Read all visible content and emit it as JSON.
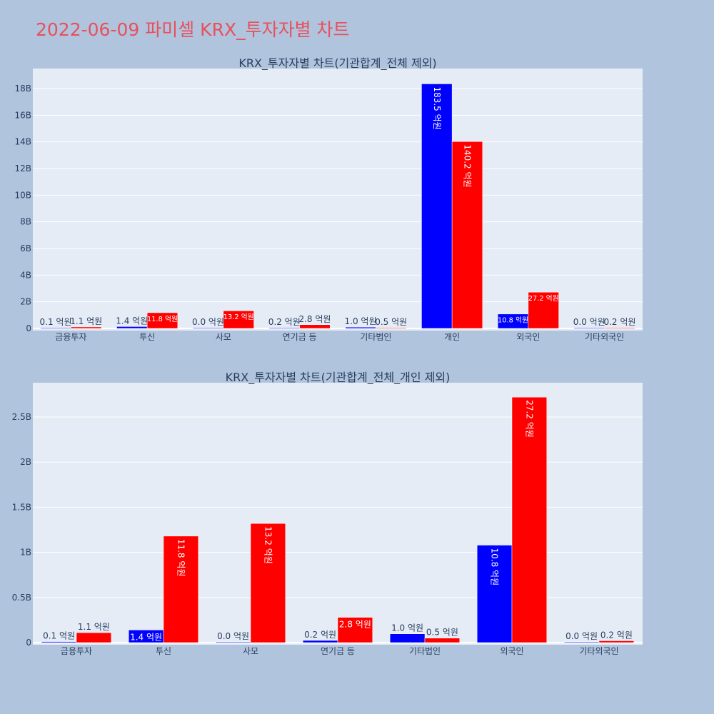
{
  "title": "2022-06-09 파미셀 KRX_투자자별 차트",
  "colors": {
    "buy": "#0000ff",
    "sell": "#ff0000",
    "plot_bg": "#e5ecf6",
    "page_bg": "#b0c4de",
    "title": "#e8505b"
  },
  "chart_data": [
    {
      "type": "bar",
      "title": "KRX_투자자별 차트(기관합계_전체 제외)",
      "categories": [
        "금융투자",
        "투신",
        "사모",
        "연기금 등",
        "기타법인",
        "개인",
        "외국인",
        "기타외국인"
      ],
      "series": [
        {
          "values": [
            11000000,
            140000000,
            1000000,
            24000000,
            97000000,
            18350000000,
            1080000000,
            2000000
          ],
          "labels": [
            "0.1 억원",
            "1.4 억원",
            "0.0 억원",
            "0.2 억원",
            "1.0 억원",
            "183.5 억원",
            "10.8 억원",
            "0.0 억원"
          ]
        },
        {
          "values": [
            110000000,
            1180000000,
            1320000000,
            280000000,
            50000000,
            14020000000,
            2720000000,
            20000000
          ],
          "labels": [
            "1.1 억원",
            "11.8 억원",
            "13.2 억원",
            "2.8 억원",
            "0.5 억원",
            "140.2 억원",
            "27.2 억원",
            "0.2 억원"
          ]
        }
      ],
      "ylim": [
        0,
        19500000000
      ],
      "yticks": [
        0,
        2000000000,
        4000000000,
        6000000000,
        8000000000,
        10000000000,
        12000000000,
        14000000000,
        16000000000,
        18000000000
      ],
      "ytick_labels": [
        "0",
        "2B",
        "4B",
        "6B",
        "8B",
        "10B",
        "12B",
        "14B",
        "16B",
        "18B"
      ],
      "grid": true
    },
    {
      "type": "bar",
      "title": "KRX_투자자별 차트(기관합계_전체_개인 제외)",
      "categories": [
        "금융투자",
        "투신",
        "사모",
        "연기금 등",
        "기타법인",
        "외국인",
        "기타외국인"
      ],
      "series": [
        {
          "values": [
            11000000,
            140000000,
            1000000,
            24000000,
            97000000,
            1080000000,
            2000000
          ],
          "labels": [
            "0.1 억원",
            "1.4 억원",
            "0.0 억원",
            "0.2 억원",
            "1.0 억원",
            "10.8 억원",
            "0.0 억원"
          ]
        },
        {
          "values": [
            110000000,
            1180000000,
            1320000000,
            280000000,
            50000000,
            2720000000,
            20000000
          ],
          "labels": [
            "1.1 억원",
            "11.8 억원",
            "13.2 억원",
            "2.8 억원",
            "0.5 억원",
            "27.2 억원",
            "0.2 억원"
          ]
        }
      ],
      "ylim": [
        0,
        2880000000
      ],
      "yticks": [
        0,
        500000000,
        1000000000,
        1500000000,
        2000000000,
        2500000000
      ],
      "ytick_labels": [
        "0",
        "0.5B",
        "1B",
        "1.5B",
        "2B",
        "2.5B"
      ],
      "grid": true
    }
  ]
}
